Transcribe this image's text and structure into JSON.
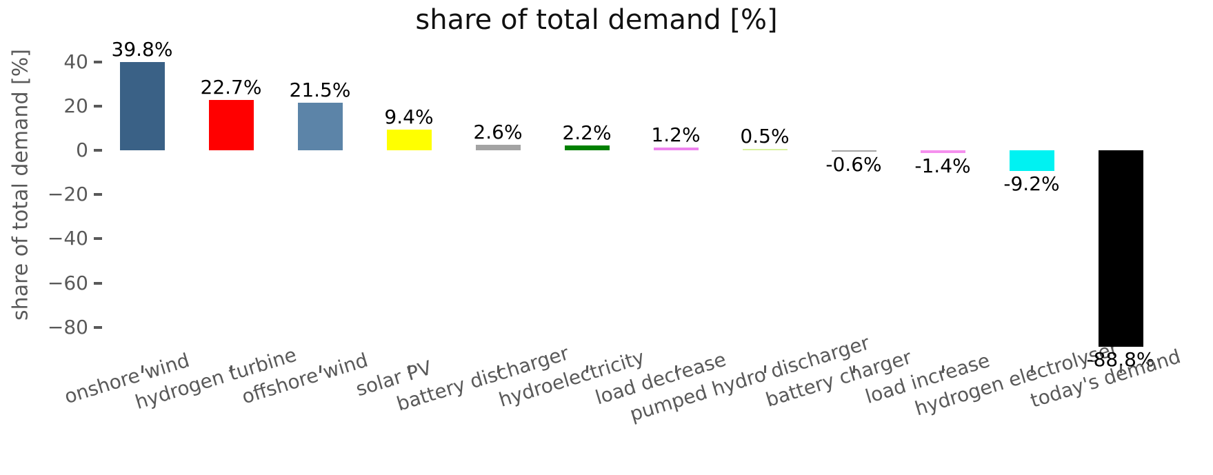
{
  "title": "share of total demand [%]",
  "chart_data": {
    "type": "bar",
    "title": "share of total demand [%]",
    "xlabel": "",
    "ylabel": "share of total demand [%]",
    "categories": [
      "onshore wind",
      "hydrogen turbine",
      "offshore wind",
      "solar PV",
      "battery discharger",
      "hydroelectricity",
      "load decrease",
      "pumped hydro discharger",
      "battery charger",
      "load increase",
      "hydrogen electrolyser",
      "today's demand"
    ],
    "values": [
      39.8,
      22.7,
      21.5,
      9.4,
      2.6,
      2.2,
      1.2,
      0.5,
      -0.6,
      -1.4,
      -9.2,
      -88.8
    ],
    "value_labels": [
      "39.8%",
      "22.7%",
      "21.5%",
      "9.4%",
      "2.6%",
      "2.2%",
      "1.2%",
      "0.5%",
      "-0.6%",
      "-1.4%",
      "-9.2%",
      "-88.8%"
    ],
    "bar_colors": [
      "#3a6186",
      "#ff0000",
      "#5c84a8",
      "#ffff00",
      "#a3a3a3",
      "#008000",
      "#ee82ee",
      "#d8f29e",
      "#a3a3a3",
      "#f590ee",
      "#00f2f2",
      "#000000"
    ],
    "ytick_values": [
      40,
      20,
      0,
      -20,
      -40,
      -60,
      -80
    ],
    "ytick_labels": [
      "40",
      "20",
      "0",
      "−20",
      "−40",
      "−60",
      "−80"
    ],
    "ylim": [
      -95,
      46
    ],
    "grid": false,
    "legend": null,
    "axis_color": "#595959",
    "annotation_color": "#000000",
    "xtick_rotation_deg": 17
  }
}
